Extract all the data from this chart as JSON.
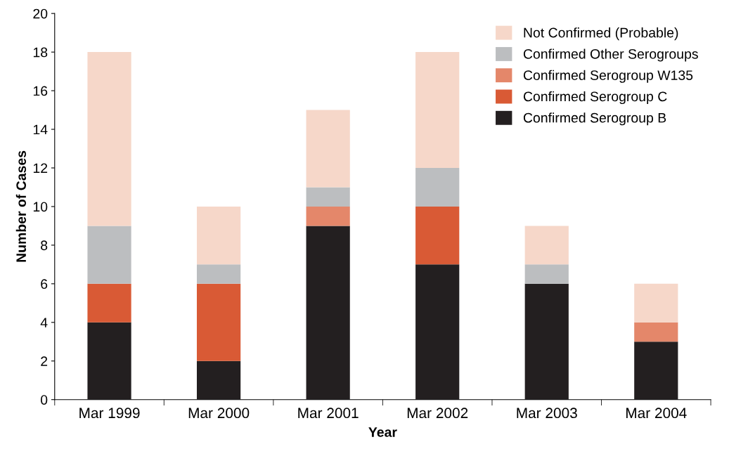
{
  "chart_data": {
    "type": "bar",
    "stacked": true,
    "xlabel": "Year",
    "ylabel": "Number of Cases",
    "categories": [
      "Mar 1999",
      "Mar 2000",
      "Mar 2001",
      "Mar 2002",
      "Mar 2003",
      "Mar 2004"
    ],
    "series": [
      {
        "name": "Confirmed Serogroup B",
        "color": "#231f20",
        "values": [
          4,
          2,
          9,
          7,
          6,
          3
        ]
      },
      {
        "name": "Confirmed Serogroup C",
        "color": "#d95a35",
        "values": [
          2,
          4,
          0,
          3,
          0,
          0
        ]
      },
      {
        "name": "Confirmed Serogroup W135",
        "color": "#e4876a",
        "values": [
          0,
          0,
          1,
          0,
          0,
          1
        ]
      },
      {
        "name": "Confirmed Other Serogroups",
        "color": "#bcbec0",
        "values": [
          3,
          1,
          1,
          2,
          1,
          0
        ]
      },
      {
        "name": "Not Confirmed (Probable)",
        "color": "#f6d7c9",
        "values": [
          9,
          3,
          4,
          6,
          2,
          2
        ]
      }
    ],
    "ylim": [
      0,
      20
    ],
    "yticks": [
      0,
      2,
      4,
      6,
      8,
      10,
      12,
      14,
      16,
      18,
      20
    ],
    "grid": false,
    "legend": "top right"
  }
}
